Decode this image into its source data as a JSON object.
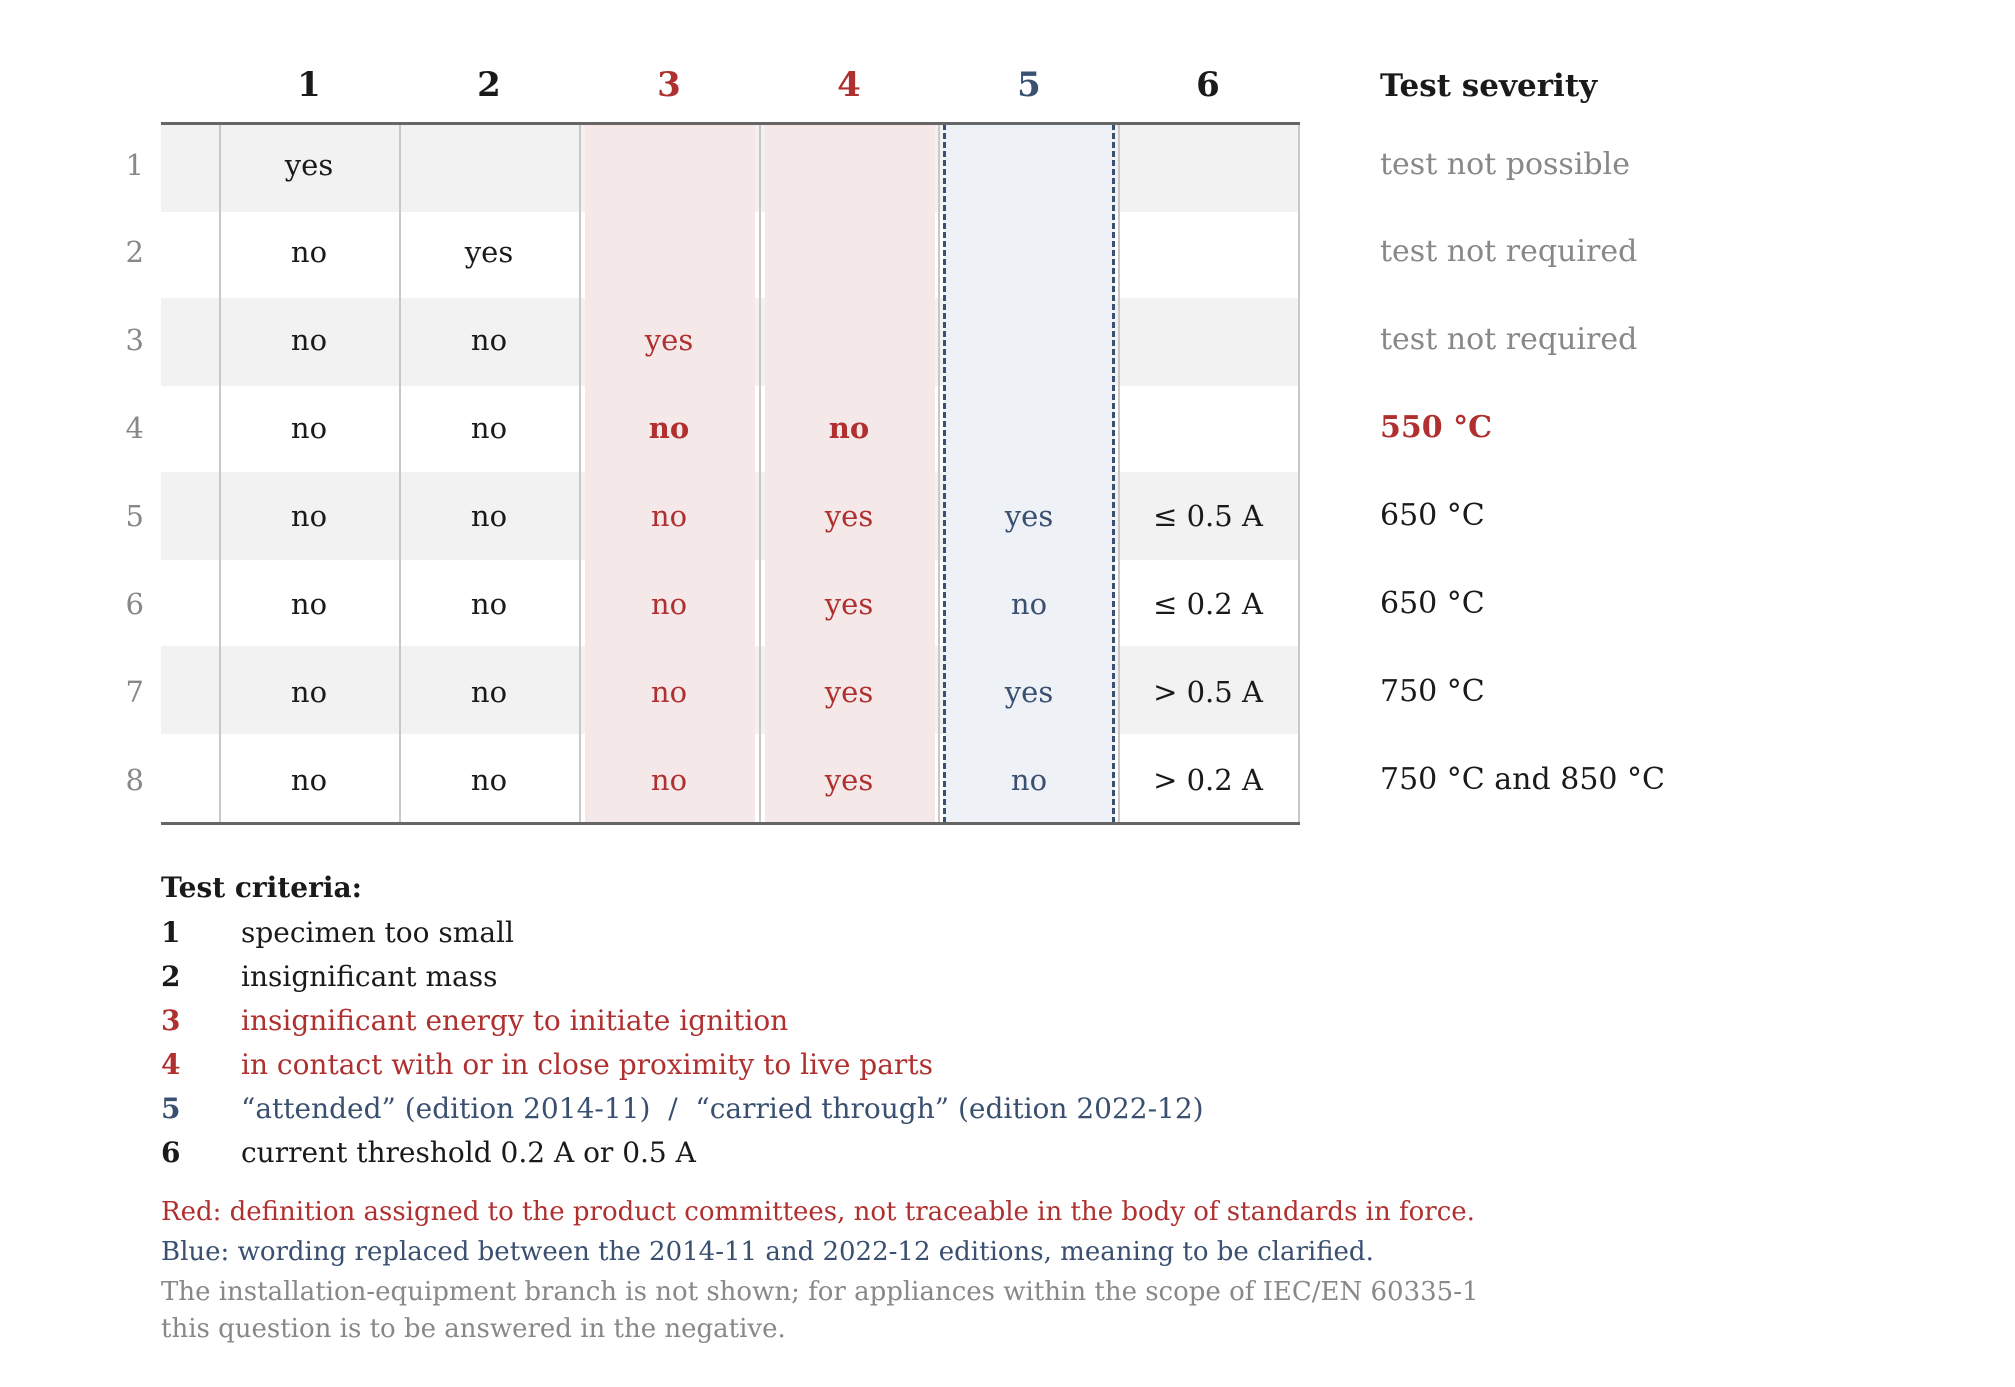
{
  "table": {
    "column_headers": [
      "1",
      "2",
      "3",
      "4",
      "5",
      "6"
    ],
    "severity_header": "Test severity",
    "rows": [
      {
        "num": "1",
        "c1": "yes",
        "c2": "",
        "c3": "",
        "c4": "",
        "c5": "",
        "c6": "",
        "severity": "test not possible"
      },
      {
        "num": "2",
        "c1": "no",
        "c2": "yes",
        "c3": "",
        "c4": "",
        "c5": "",
        "c6": "",
        "severity": "test not required"
      },
      {
        "num": "3",
        "c1": "no",
        "c2": "no",
        "c3": "yes",
        "c4": "",
        "c5": "",
        "c6": "",
        "severity": "test not required"
      },
      {
        "num": "4",
        "c1": "no",
        "c2": "no",
        "c3": "no",
        "c4": "no",
        "c5": "",
        "c6": "",
        "severity": "550 °C"
      },
      {
        "num": "5",
        "c1": "no",
        "c2": "no",
        "c3": "no",
        "c4": "yes",
        "c5": "yes",
        "c6": "≤ 0.5 A",
        "severity": "650 °C"
      },
      {
        "num": "6",
        "c1": "no",
        "c2": "no",
        "c3": "no",
        "c4": "yes",
        "c5": "no",
        "c6": "≤ 0.2 A",
        "severity": "650 °C"
      },
      {
        "num": "7",
        "c1": "no",
        "c2": "no",
        "c3": "no",
        "c4": "yes",
        "c5": "yes",
        "c6": "> 0.5 A",
        "severity": "750 °C"
      },
      {
        "num": "8",
        "c1": "no",
        "c2": "no",
        "c3": "no",
        "c4": "yes",
        "c5": "no",
        "c6": "> 0.2 A",
        "severity": "750 °C and 850 °C"
      }
    ]
  },
  "criteria": {
    "title": "Test criteria:",
    "items": [
      {
        "num": "1",
        "text": "specimen too small"
      },
      {
        "num": "2",
        "text": "insignificant mass"
      },
      {
        "num": "3",
        "text": "insignificant energy to initiate ignition"
      },
      {
        "num": "4",
        "text": "in contact with or in close proximity to live parts"
      },
      {
        "num": "5",
        "text": "“attended” (edition 2014-11)  /  “carried through” (edition 2022-12)"
      },
      {
        "num": "6",
        "text": "current threshold 0.2 A or 0.5 A"
      }
    ]
  },
  "notes": {
    "red": "Red: definition assigned to the product committees, not traceable in the body of standards in force.",
    "blue": "Blue: wording replaced between the 2014-11 and 2022-12 editions, meaning to be clarified.",
    "grey_line1": "The installation-equipment branch is not shown; for appliances within the scope of IEC/EN 60335-1",
    "grey_line2": "this question is to be answered in the negative."
  },
  "colors": {
    "red": "#b03030",
    "blue": "#3a5070",
    "grey": "#888888",
    "red_column_bg": "#f5e8e8",
    "blue_column_bg": "#eef1f5",
    "stripe_bg": "#f2f2f2"
  }
}
